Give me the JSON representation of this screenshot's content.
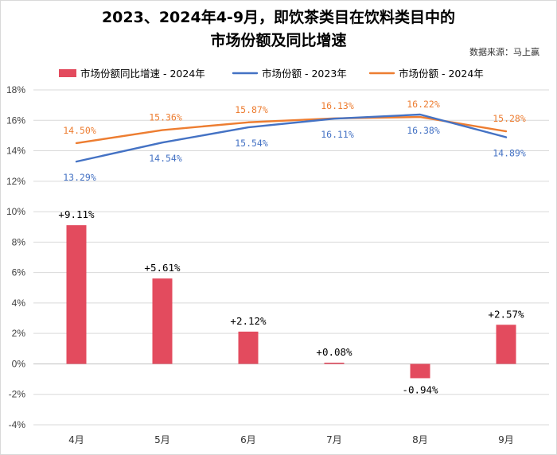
{
  "title_line1": "2023、2024年4-9月，即饮茶类目在饮料类目中的",
  "title_line2": "市场份额及同比增速",
  "source_note": "数据来源：马上赢",
  "colors": {
    "bar": "#e34b5e",
    "line2023": "#4472c4",
    "line2024": "#ed7d31",
    "grid": "#d9d9d9",
    "axis": "#bfbfbf"
  },
  "chart_data": {
    "type": "bar",
    "categories": [
      "4月",
      "5月",
      "6月",
      "7月",
      "8月",
      "9月"
    ],
    "ylim": [
      -4,
      18
    ],
    "y_ticks": [
      -4,
      -2,
      0,
      2,
      4,
      6,
      8,
      10,
      12,
      14,
      16,
      18
    ],
    "y_tick_labels": [
      "-4%",
      "-2%",
      "0%",
      "2%",
      "4%",
      "6%",
      "8%",
      "10%",
      "12%",
      "14%",
      "16%",
      "18%"
    ],
    "grid": true,
    "legend_position": "top",
    "series": [
      {
        "name": "市场份额同比增速 - 2024年",
        "type": "bar",
        "values": [
          9.11,
          5.61,
          2.12,
          0.08,
          -0.94,
          2.57
        ],
        "labels": [
          "+9.11%",
          "+5.61%",
          "+2.12%",
          "+0.08%",
          "-0.94%",
          "+2.57%"
        ]
      },
      {
        "name": "市场份额 - 2023年",
        "type": "line",
        "values": [
          13.29,
          14.54,
          15.54,
          16.11,
          16.38,
          14.89
        ],
        "labels": [
          "13.29%",
          "14.54%",
          "15.54%",
          "16.11%",
          "16.38%",
          "14.89%"
        ]
      },
      {
        "name": "市场份额 - 2024年",
        "type": "line",
        "values": [
          14.5,
          15.36,
          15.87,
          16.13,
          16.22,
          15.28
        ],
        "labels": [
          "14.50%",
          "15.36%",
          "15.87%",
          "16.13%",
          "16.22%",
          "15.28%"
        ]
      }
    ]
  }
}
